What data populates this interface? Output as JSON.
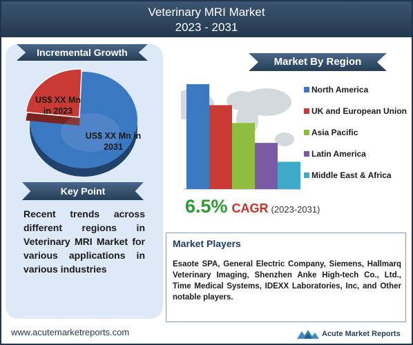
{
  "title": {
    "line1": "Veterinary MRI Market",
    "line2": "2023 - 2031"
  },
  "incremental": {
    "heading": "Incremental Growth",
    "label_2023": "US$ XX Mn in 2023",
    "label_2031": "US$ XX Mn in 2031"
  },
  "key_point": {
    "heading": "Key Point",
    "text": "Recent trends across different regions in Veterinary MRI Market for various applications in various industries"
  },
  "region": {
    "heading": "Market By Region"
  },
  "cagr": {
    "value": "6.5%",
    "label": "CAGR",
    "period": "(2023-2031)"
  },
  "players": {
    "heading": "Market Players",
    "text": "Esaote SPA, General Electric Company, Siemens, Hallmarq Veterinary Imaging, Shenzhen Anke High-tech Co., Ltd., Time Medical Systems, IDEXX Laboratories, Inc, and Other notable players."
  },
  "footer": {
    "url": "www.acutemarketreports.com",
    "logo_text": "Acute Market Reports"
  },
  "colors": {
    "pie_2031": "#3b78c2",
    "pie_2023": "#c93a35"
  },
  "chart_data": [
    {
      "type": "pie",
      "categories": [
        "2023",
        "2031"
      ],
      "values": [
        24,
        76
      ],
      "labels": [
        "US$ XX Mn in 2023",
        "US$ XX Mn in 2031"
      ],
      "colors": [
        "#c93a35",
        "#3b78c2"
      ]
    },
    {
      "type": "bar",
      "categories": [
        "North America",
        "UK and European Union",
        "Asia Pacific",
        "Latin America",
        "Middle East & Africa"
      ],
      "values": [
        100,
        80,
        63,
        44,
        26
      ],
      "colors": [
        "#3b78c2",
        "#c93a35",
        "#8fbd3f",
        "#7a5aa6",
        "#3fa9c9"
      ],
      "legend_position": "right",
      "grid": false,
      "background": "world-map"
    }
  ]
}
